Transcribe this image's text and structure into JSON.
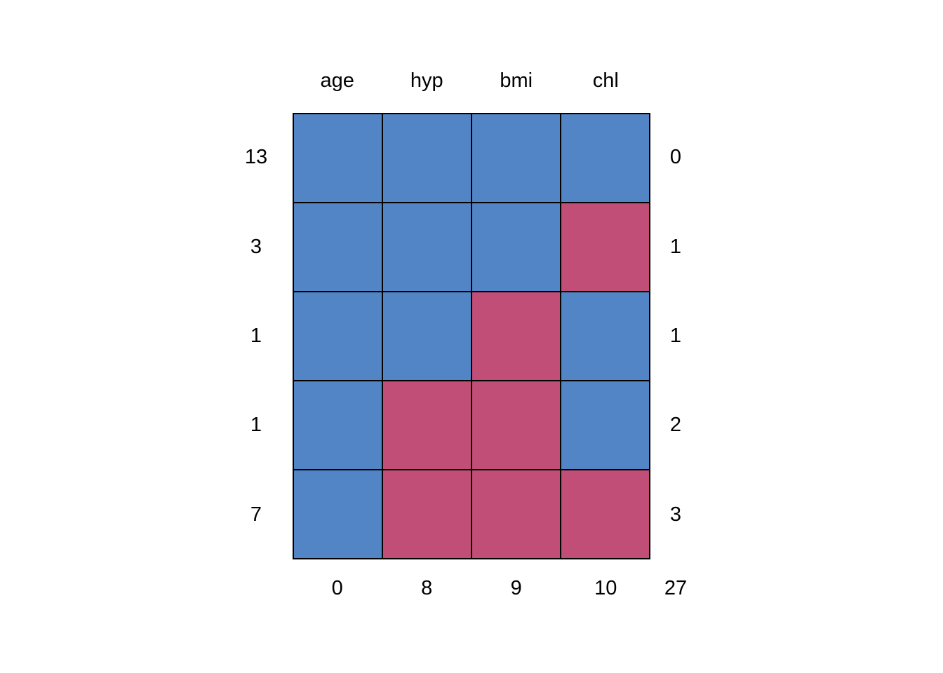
{
  "chart_data": {
    "type": "heatmap",
    "title": "",
    "columns": [
      "age",
      "hyp",
      "bmi",
      "chl"
    ],
    "rows": [
      {
        "count": "13",
        "pattern": [
          1,
          1,
          1,
          1
        ],
        "n_missing": "0"
      },
      {
        "count": "3",
        "pattern": [
          1,
          1,
          1,
          0
        ],
        "n_missing": "1"
      },
      {
        "count": "1",
        "pattern": [
          1,
          1,
          0,
          1
        ],
        "n_missing": "1"
      },
      {
        "count": "1",
        "pattern": [
          1,
          0,
          0,
          1
        ],
        "n_missing": "2"
      },
      {
        "count": "7",
        "pattern": [
          1,
          0,
          0,
          0
        ],
        "n_missing": "3"
      }
    ],
    "column_missing_totals": [
      "0",
      "8",
      "9",
      "10"
    ],
    "total_missing": "27",
    "colors": {
      "observed": "#5285C6",
      "missing": "#C04E76",
      "border": "#000000",
      "background": "#ffffff",
      "text": "#000000"
    },
    "layout": {
      "legend": "none",
      "grid_lines": "on",
      "cell_states": {
        "1": "observed",
        "0": "missing"
      }
    }
  }
}
